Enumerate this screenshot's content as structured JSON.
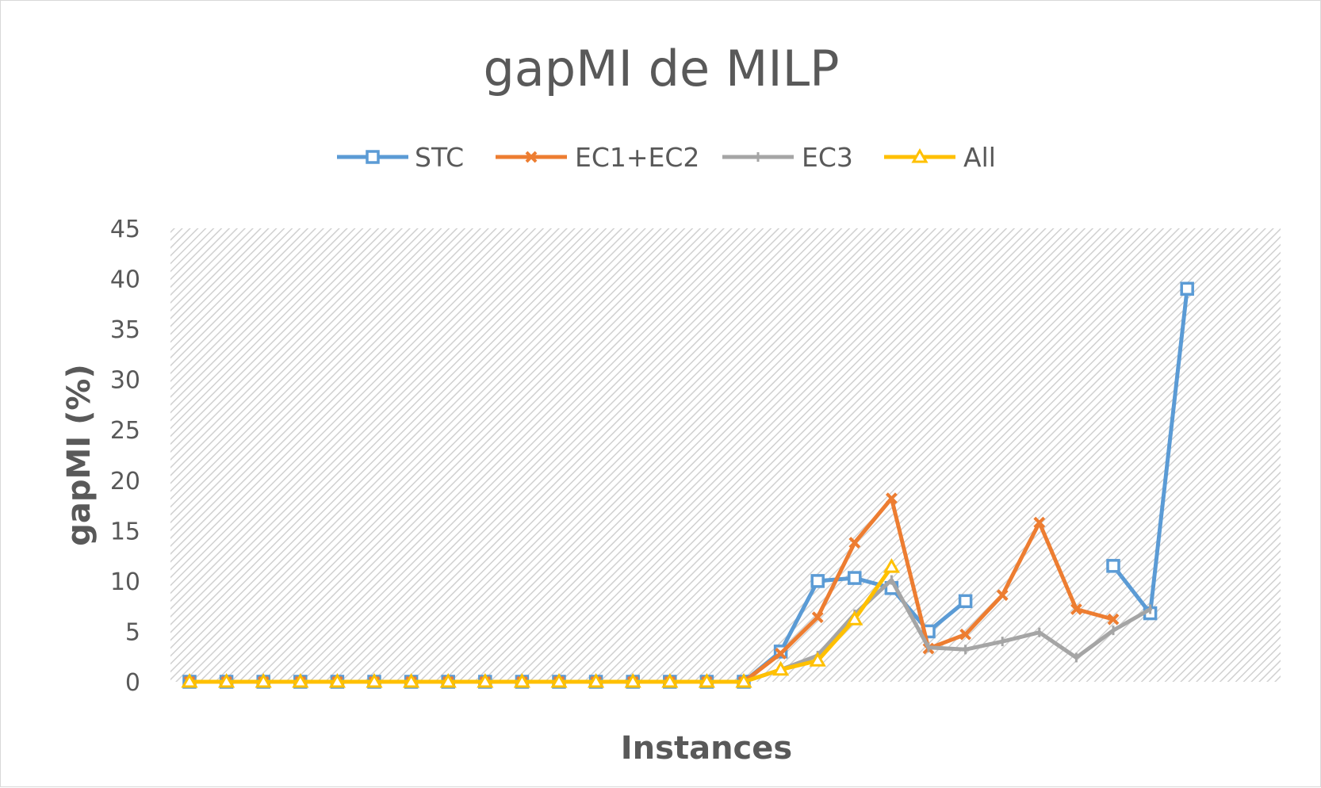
{
  "chart_data": {
    "type": "line",
    "title": "gapMI de MILP",
    "xlabel": "Instances",
    "ylabel": "gapMI (%)",
    "ylim": [
      0,
      45
    ],
    "yticks": [
      0,
      5,
      10,
      15,
      20,
      25,
      30,
      35,
      40,
      45
    ],
    "x": [
      1,
      2,
      3,
      4,
      5,
      6,
      7,
      8,
      9,
      10,
      11,
      12,
      13,
      14,
      15,
      16,
      17,
      18,
      19,
      20,
      21,
      22,
      23,
      24,
      25,
      26,
      27,
      28,
      29,
      30
    ],
    "legend_position": "top",
    "grid": false,
    "plot_background": "diagonal hatch",
    "series": [
      {
        "name": "STC",
        "color": "#5b9bd5",
        "marker": "square",
        "values": [
          0,
          0,
          0,
          0,
          0,
          0,
          0,
          0,
          0,
          0,
          0,
          0,
          0,
          0,
          0,
          0,
          3.0,
          10.0,
          10.3,
          9.3,
          5.0,
          8.0,
          null,
          null,
          null,
          11.5,
          6.8,
          39.0,
          null,
          null
        ]
      },
      {
        "name": "EC1+EC2",
        "color": "#ed7d31",
        "marker": "x",
        "values": [
          0,
          0,
          0,
          0,
          0,
          0,
          0,
          0,
          0,
          0,
          0,
          0,
          0,
          0,
          0,
          0,
          2.8,
          6.4,
          13.8,
          18.2,
          3.3,
          4.7,
          8.6,
          15.8,
          7.2,
          6.2,
          null,
          null,
          null,
          null
        ]
      },
      {
        "name": "EC3",
        "color": "#a5a5a5",
        "marker": "dash",
        "values": [
          0,
          0,
          0,
          0,
          0,
          0,
          0,
          0,
          0,
          0,
          0,
          0,
          0,
          0,
          0,
          0,
          1.2,
          2.6,
          6.7,
          10.1,
          3.4,
          3.2,
          4.0,
          4.9,
          2.4,
          5.1,
          7.2,
          null,
          null,
          null
        ]
      },
      {
        "name": "All",
        "color": "#ffc000",
        "marker": "triangle",
        "values": [
          0,
          0,
          0,
          0,
          0,
          0,
          0,
          0,
          0,
          0,
          0,
          0,
          0,
          0,
          0,
          0,
          1.2,
          2.1,
          6.2,
          11.4,
          null,
          null,
          null,
          null,
          null,
          null,
          null,
          null,
          null,
          null
        ]
      }
    ]
  }
}
